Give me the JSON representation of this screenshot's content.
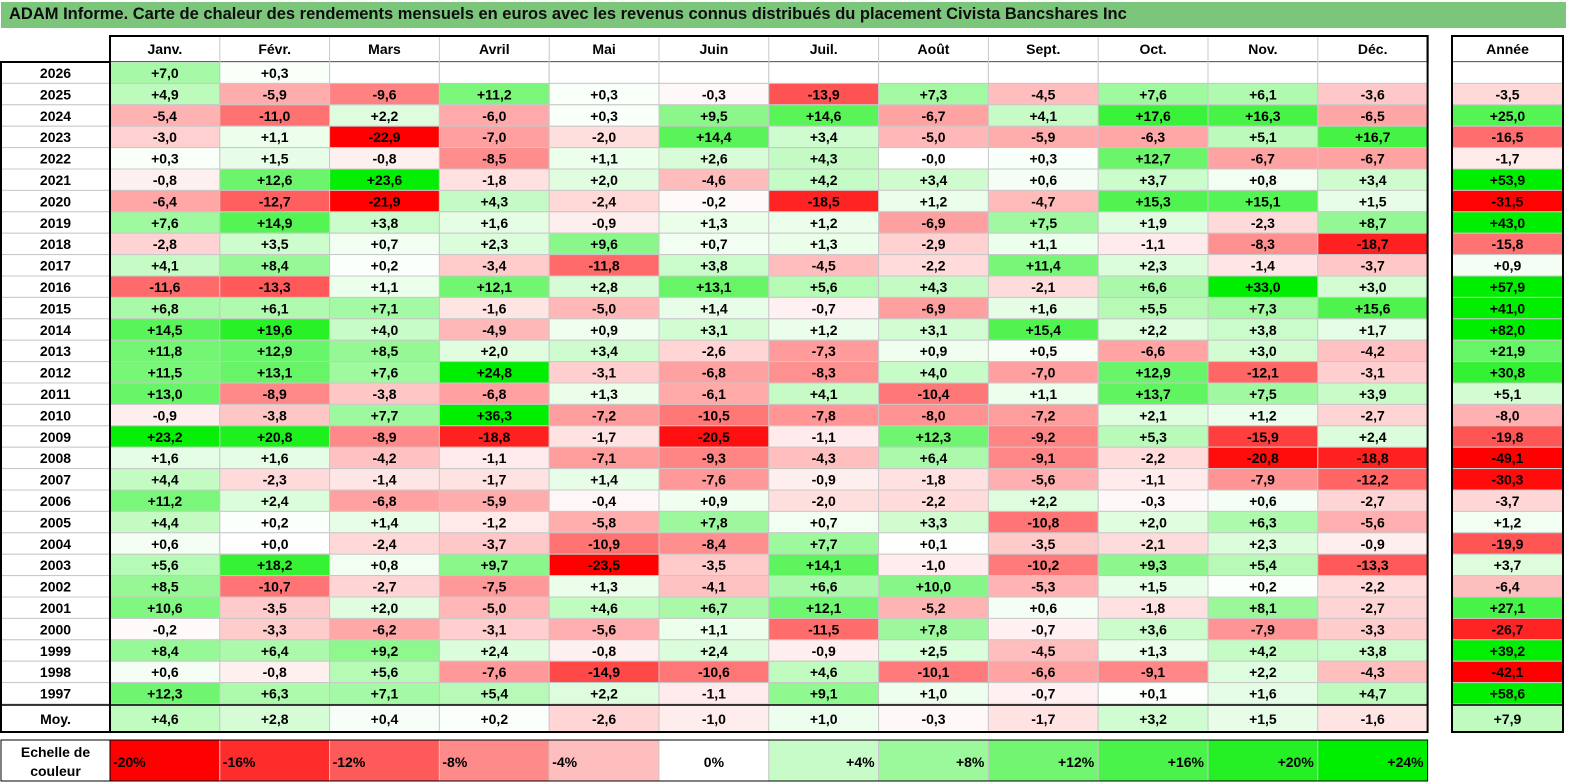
{
  "chart_data": {
    "type": "heatmap",
    "title": "ADAM Informe. Carte de chaleur des rendements mensuels en euros avec les revenus connus distribués du placement Civista Bancshares Inc",
    "months": [
      "Janv.",
      "Févr.",
      "Mars",
      "Avril",
      "Mai",
      "Juin",
      "Juil.",
      "Août",
      "Sept.",
      "Oct.",
      "Nov.",
      "Déc."
    ],
    "year_header": "Année",
    "rows": [
      {
        "year": "2026",
        "values": [
          "+7,0",
          "+0,3",
          null,
          null,
          null,
          null,
          null,
          null,
          null,
          null,
          null,
          null
        ],
        "annual": null
      },
      {
        "year": "2025",
        "values": [
          "+4,9",
          "-5,9",
          "-9,6",
          "+11,2",
          "+0,3",
          "-0,3",
          "-13,9",
          "+7,3",
          "-4,5",
          "+7,6",
          "+6,1",
          "-3,6"
        ],
        "annual": "-3,5"
      },
      {
        "year": "2024",
        "values": [
          "-5,4",
          "-11,0",
          "+2,2",
          "-6,0",
          "+0,3",
          "+9,5",
          "+14,6",
          "-6,7",
          "+4,1",
          "+17,6",
          "+16,3",
          "-6,5"
        ],
        "annual": "+25,0"
      },
      {
        "year": "2023",
        "values": [
          "-3,0",
          "+1,1",
          "-22,9",
          "-7,0",
          "-2,0",
          "+14,4",
          "+3,4",
          "-5,0",
          "-5,9",
          "-6,3",
          "+5,1",
          "+16,7"
        ],
        "annual": "-16,5"
      },
      {
        "year": "2022",
        "values": [
          "+0,3",
          "+1,5",
          "-0,8",
          "-8,5",
          "+1,1",
          "+2,6",
          "+4,3",
          "-0,0",
          "+0,3",
          "+12,7",
          "-6,7",
          "-6,7"
        ],
        "annual": "-1,7"
      },
      {
        "year": "2021",
        "values": [
          "-0,8",
          "+12,6",
          "+23,6",
          "-1,8",
          "+2,0",
          "-4,6",
          "+4,2",
          "+3,4",
          "+0,6",
          "+3,7",
          "+0,8",
          "+3,4"
        ],
        "annual": "+53,9"
      },
      {
        "year": "2020",
        "values": [
          "-6,4",
          "-12,7",
          "-21,9",
          "+4,3",
          "-2,4",
          "-0,2",
          "-18,5",
          "+1,2",
          "-4,7",
          "+15,3",
          "+15,1",
          "+1,5"
        ],
        "annual": "-31,5"
      },
      {
        "year": "2019",
        "values": [
          "+7,6",
          "+14,9",
          "+3,8",
          "+1,6",
          "-0,9",
          "+1,3",
          "+1,2",
          "-6,9",
          "+7,5",
          "+1,9",
          "-2,3",
          "+8,7"
        ],
        "annual": "+43,0"
      },
      {
        "year": "2018",
        "values": [
          "-2,8",
          "+3,5",
          "+0,7",
          "+2,3",
          "+9,6",
          "+0,7",
          "+1,3",
          "-2,9",
          "+1,1",
          "-1,1",
          "-8,3",
          "-18,7"
        ],
        "annual": "-15,8"
      },
      {
        "year": "2017",
        "values": [
          "+4,1",
          "+8,4",
          "+0,2",
          "-3,4",
          "-11,8",
          "+3,8",
          "-4,5",
          "-2,2",
          "+11,4",
          "+2,3",
          "-1,4",
          "-3,7"
        ],
        "annual": "+0,9"
      },
      {
        "year": "2016",
        "values": [
          "-11,6",
          "-13,3",
          "+1,1",
          "+12,1",
          "+2,8",
          "+13,1",
          "+5,6",
          "+4,3",
          "-2,1",
          "+6,6",
          "+33,0",
          "+3,0"
        ],
        "annual": "+57,9"
      },
      {
        "year": "2015",
        "values": [
          "+6,8",
          "+6,1",
          "+7,1",
          "-1,6",
          "-5,0",
          "+1,4",
          "-0,7",
          "-6,9",
          "+1,6",
          "+5,5",
          "+7,3",
          "+15,6"
        ],
        "annual": "+41,0"
      },
      {
        "year": "2014",
        "values": [
          "+14,5",
          "+19,6",
          "+4,0",
          "-4,9",
          "+0,9",
          "+3,1",
          "+1,2",
          "+3,1",
          "+15,4",
          "+2,2",
          "+3,8",
          "+1,7"
        ],
        "annual": "+82,0"
      },
      {
        "year": "2013",
        "values": [
          "+11,8",
          "+12,9",
          "+8,5",
          "+2,0",
          "+3,4",
          "-2,6",
          "-7,3",
          "+0,9",
          "+0,5",
          "-6,6",
          "+3,0",
          "-4,2"
        ],
        "annual": "+21,9"
      },
      {
        "year": "2012",
        "values": [
          "+11,5",
          "+13,1",
          "+7,6",
          "+24,8",
          "-3,1",
          "-6,8",
          "-8,3",
          "+4,0",
          "-7,0",
          "+12,9",
          "-12,1",
          "-3,1"
        ],
        "annual": "+30,8"
      },
      {
        "year": "2011",
        "values": [
          "+13,0",
          "-8,9",
          "-3,8",
          "-6,8",
          "+1,3",
          "-6,1",
          "+4,1",
          "-10,4",
          "+1,1",
          "+13,7",
          "+7,5",
          "+3,9"
        ],
        "annual": "+5,1"
      },
      {
        "year": "2010",
        "values": [
          "-0,9",
          "-3,8",
          "+7,7",
          "+36,3",
          "-7,2",
          "-10,5",
          "-7,8",
          "-8,0",
          "-7,2",
          "+2,1",
          "+1,2",
          "-2,7"
        ],
        "annual": "-8,0"
      },
      {
        "year": "2009",
        "values": [
          "+23,2",
          "+20,8",
          "-8,9",
          "-18,8",
          "-1,7",
          "-20,5",
          "-1,1",
          "+12,3",
          "-9,2",
          "+5,3",
          "-15,9",
          "+2,4"
        ],
        "annual": "-19,8"
      },
      {
        "year": "2008",
        "values": [
          "+1,6",
          "+1,6",
          "-4,2",
          "-1,1",
          "-7,1",
          "-9,3",
          "-4,3",
          "+6,4",
          "-9,1",
          "-2,2",
          "-20,8",
          "-18,8"
        ],
        "annual": "-49,1"
      },
      {
        "year": "2007",
        "values": [
          "+4,4",
          "-2,3",
          "-1,4",
          "-1,7",
          "+1,4",
          "-7,6",
          "-0,9",
          "-1,8",
          "-5,6",
          "-1,1",
          "-7,9",
          "-12,2"
        ],
        "annual": "-30,3"
      },
      {
        "year": "2006",
        "values": [
          "+11,2",
          "+2,4",
          "-6,8",
          "-5,9",
          "-0,4",
          "+0,9",
          "-2,0",
          "-2,2",
          "+2,2",
          "-0,3",
          "+0,6",
          "-2,7"
        ],
        "annual": "-3,7"
      },
      {
        "year": "2005",
        "values": [
          "+4,4",
          "+0,2",
          "+1,4",
          "-1,2",
          "-5,8",
          "+7,8",
          "+0,7",
          "+3,3",
          "-10,8",
          "+2,0",
          "+6,3",
          "-5,6"
        ],
        "annual": "+1,2"
      },
      {
        "year": "2004",
        "values": [
          "+0,6",
          "+0,0",
          "-2,4",
          "-3,7",
          "-10,9",
          "-8,4",
          "+7,7",
          "+0,1",
          "-3,5",
          "-2,1",
          "+2,3",
          "-0,9"
        ],
        "annual": "-19,9"
      },
      {
        "year": "2003",
        "values": [
          "+5,6",
          "+18,2",
          "+0,8",
          "+9,7",
          "-23,5",
          "-3,5",
          "+14,1",
          "-1,0",
          "-10,2",
          "+9,3",
          "+5,4",
          "-13,3"
        ],
        "annual": "+3,7"
      },
      {
        "year": "2002",
        "values": [
          "+8,5",
          "-10,7",
          "-2,7",
          "-7,5",
          "+1,3",
          "-4,1",
          "+6,6",
          "+10,0",
          "-5,3",
          "+1,5",
          "+0,2",
          "-2,2"
        ],
        "annual": "-6,4"
      },
      {
        "year": "2001",
        "values": [
          "+10,6",
          "-3,5",
          "+2,0",
          "-5,0",
          "+4,6",
          "+6,7",
          "+12,1",
          "-5,2",
          "+0,6",
          "-1,8",
          "+8,1",
          "-2,7"
        ],
        "annual": "+27,1"
      },
      {
        "year": "2000",
        "values": [
          "-0,2",
          "-3,3",
          "-6,2",
          "-3,1",
          "-5,6",
          "+1,1",
          "-11,5",
          "+7,8",
          "-0,7",
          "+3,6",
          "-7,9",
          "-3,3"
        ],
        "annual": "-26,7"
      },
      {
        "year": "1999",
        "values": [
          "+8,4",
          "+6,4",
          "+9,2",
          "+2,4",
          "-0,8",
          "+2,4",
          "-0,9",
          "+2,5",
          "-4,5",
          "+1,3",
          "+4,2",
          "+3,8"
        ],
        "annual": "+39,2"
      },
      {
        "year": "1998",
        "values": [
          "+0,6",
          "-0,8",
          "+5,6",
          "-7,6",
          "-14,9",
          "-10,6",
          "+4,6",
          "-10,1",
          "-6,6",
          "-9,1",
          "+2,2",
          "-4,3"
        ],
        "annual": "-42,1"
      },
      {
        "year": "1997",
        "values": [
          "+12,3",
          "+6,3",
          "+7,1",
          "+5,4",
          "+2,2",
          "-1,1",
          "+9,1",
          "+1,0",
          "-0,7",
          "+0,1",
          "+1,6",
          "+4,7"
        ],
        "annual": "+58,6"
      }
    ],
    "average": {
      "label": "Moy.",
      "values": [
        "+4,6",
        "+2,8",
        "+0,4",
        "+0,2",
        "-2,6",
        "-1,0",
        "+1,0",
        "-0,3",
        "-1,7",
        "+3,2",
        "+1,5",
        "-1,6"
      ],
      "annual": "+7,9"
    },
    "legend": {
      "label_line1": "Echelle de",
      "label_line2": "couleur",
      "steps": [
        "-20%",
        "-16%",
        "-12%",
        "-8%",
        "-4%",
        "0%",
        "+4%",
        "+8%",
        "+12%",
        "+16%",
        "+20%",
        "+24%"
      ],
      "step_values": [
        -20,
        -16,
        -12,
        -8,
        -4,
        0,
        4,
        8,
        12,
        16,
        20,
        24
      ]
    },
    "colors": {
      "title_bg": "#7cc67c",
      "negative_max": "#ff0000",
      "positive_max": "#00ee00",
      "neutral": "#ffffff",
      "grid_line": "#c8c8c8",
      "border": "#000000"
    }
  }
}
